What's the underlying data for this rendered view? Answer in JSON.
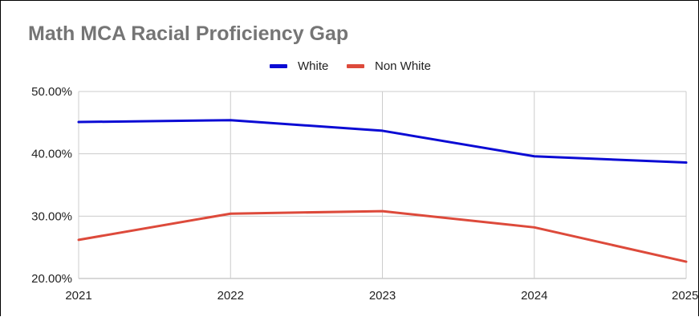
{
  "chart_data": {
    "type": "line",
    "title": "Math MCA Racial Proficiency Gap",
    "xlabel": "",
    "ylabel": "",
    "categories": [
      "2021",
      "2022",
      "2023",
      "2024",
      "2025"
    ],
    "series": [
      {
        "name": "White",
        "color": "#0b0bd4",
        "values": [
          45.1,
          45.4,
          43.7,
          39.6,
          38.6
        ]
      },
      {
        "name": "Non White",
        "color": "#dd4a3b",
        "values": [
          26.2,
          30.4,
          30.8,
          28.2,
          22.7
        ]
      }
    ],
    "ylim": [
      20,
      50
    ],
    "y_ticks": [
      "20.00%",
      "30.00%",
      "40.00%",
      "50.00%"
    ],
    "grid": true,
    "legend_position": "top-center",
    "gridline_color": "#cccccc"
  }
}
